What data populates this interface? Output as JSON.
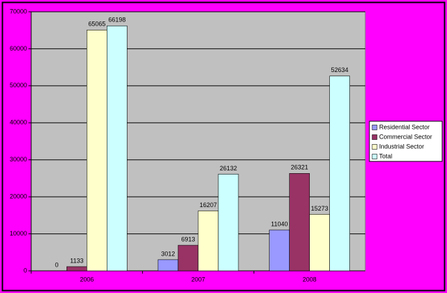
{
  "chart_data": {
    "type": "bar",
    "categories": [
      "2006",
      "2007",
      "2008"
    ],
    "series": [
      {
        "name": "Residential Sector",
        "color": "#9999ff",
        "values": [
          0,
          3012,
          11040
        ]
      },
      {
        "name": "Commercial Sector",
        "color": "#993366",
        "values": [
          1133,
          6913,
          26321
        ]
      },
      {
        "name": "Industrial Sector",
        "color": "#ffffcc",
        "values": [
          65065,
          16207,
          15273
        ]
      },
      {
        "name": "Total",
        "color": "#ccffff",
        "values": [
          66198,
          26132,
          52634
        ]
      }
    ],
    "ylim": [
      0,
      70000
    ],
    "yticks": [
      0,
      10000,
      20000,
      30000,
      40000,
      50000,
      60000,
      70000
    ],
    "grid": true,
    "legend": "right"
  }
}
